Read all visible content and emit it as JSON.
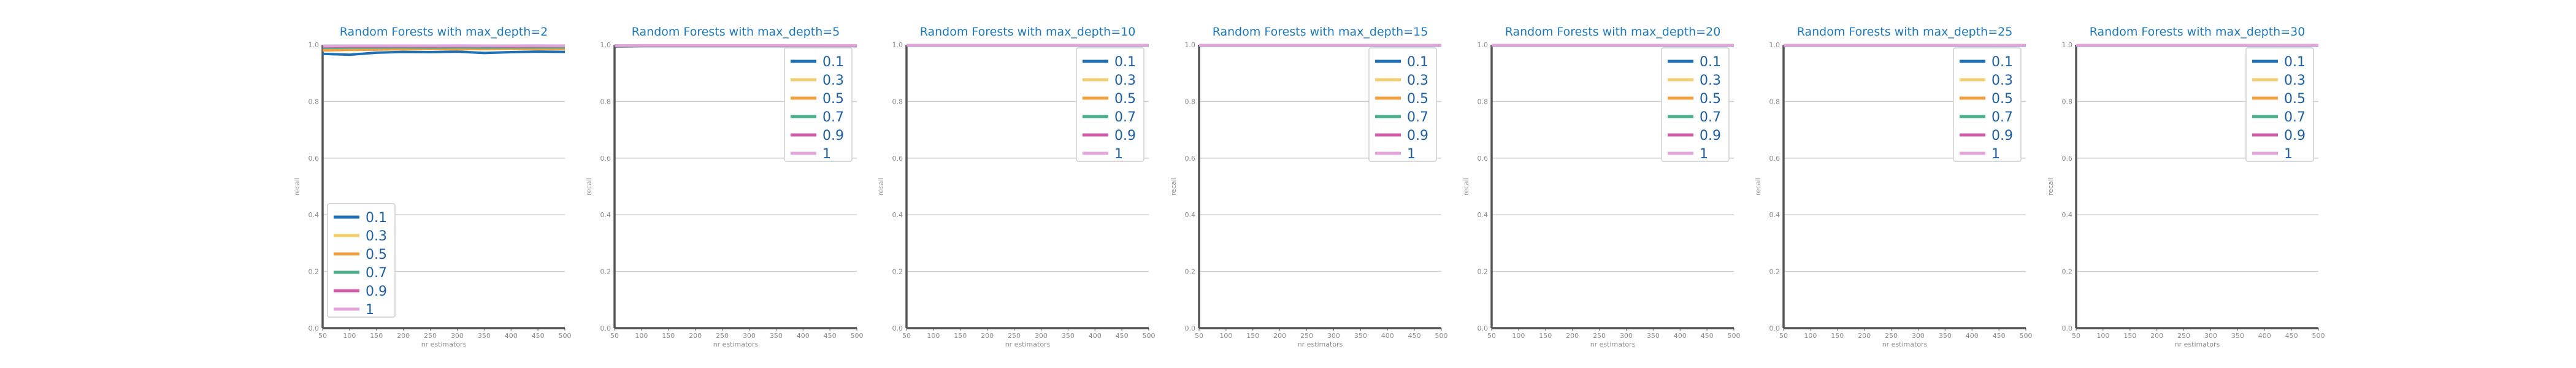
{
  "chart_data": [
    {
      "type": "line",
      "title": "Random Forests with max_depth=2",
      "xlabel": "nr estimators",
      "ylabel": "recall",
      "xlim": [
        50,
        500
      ],
      "ylim": [
        0,
        1
      ],
      "xticks": [
        "50",
        "100",
        "150",
        "200",
        "250",
        "300",
        "350",
        "400",
        "450",
        "500"
      ],
      "yticks": [
        "0.0",
        "0.2",
        "0.4",
        "0.6",
        "0.8",
        "1.0"
      ],
      "grid": true,
      "legend": "lower-left",
      "x": [
        50,
        100,
        150,
        200,
        250,
        300,
        350,
        400,
        450,
        500
      ],
      "series": [
        {
          "name": "0.1",
          "color": "#1f6fb5",
          "values": [
            0.968,
            0.965,
            0.972,
            0.975,
            0.974,
            0.976,
            0.971,
            0.974,
            0.976,
            0.975
          ]
        },
        {
          "name": "0.3",
          "color": "#f3cd70",
          "values": [
            0.982,
            0.985,
            0.984,
            0.986,
            0.985,
            0.986,
            0.986,
            0.985,
            0.986,
            0.986
          ]
        },
        {
          "name": "0.5",
          "color": "#f0a040",
          "values": [
            0.98,
            0.982,
            0.983,
            0.984,
            0.985,
            0.984,
            0.985,
            0.986,
            0.985,
            0.985
          ]
        },
        {
          "name": "0.7",
          "color": "#4caf8c",
          "values": [
            0.989,
            0.99,
            0.99,
            0.991,
            0.99,
            0.991,
            0.99,
            0.991,
            0.991,
            0.991
          ]
        },
        {
          "name": "0.9",
          "color": "#d05ca8",
          "values": [
            0.993,
            0.994,
            0.994,
            0.995,
            0.994,
            0.995,
            0.995,
            0.994,
            0.995,
            0.995
          ]
        },
        {
          "name": "1",
          "color": "#e2a6db",
          "values": [
            0.995,
            0.996,
            0.996,
            0.996,
            0.996,
            0.997,
            0.996,
            0.996,
            0.997,
            0.996
          ]
        }
      ]
    },
    {
      "type": "line",
      "title": "Random Forests with max_depth=5",
      "xlabel": "nr estimators",
      "ylabel": "recall",
      "xlim": [
        50,
        500
      ],
      "ylim": [
        0,
        1
      ],
      "xticks": [
        "50",
        "100",
        "150",
        "200",
        "250",
        "300",
        "350",
        "400",
        "450",
        "500"
      ],
      "yticks": [
        "0.0",
        "0.2",
        "0.4",
        "0.6",
        "0.8",
        "1.0"
      ],
      "grid": true,
      "legend": "upper-right",
      "x": [
        50,
        100,
        150,
        200,
        250,
        300,
        350,
        400,
        450,
        500
      ],
      "series": [
        {
          "name": "0.1",
          "color": "#1f6fb5",
          "values": [
            0.994,
            0.995,
            0.995,
            0.995,
            0.995,
            0.995,
            0.995,
            0.995,
            0.995,
            0.995
          ]
        },
        {
          "name": "0.3",
          "color": "#f3cd70",
          "values": [
            0.996,
            0.996,
            0.996,
            0.996,
            0.996,
            0.996,
            0.996,
            0.996,
            0.996,
            0.996
          ]
        },
        {
          "name": "0.5",
          "color": "#f0a040",
          "values": [
            0.996,
            0.997,
            0.997,
            0.997,
            0.997,
            0.997,
            0.997,
            0.997,
            0.997,
            0.997
          ]
        },
        {
          "name": "0.7",
          "color": "#4caf8c",
          "values": [
            0.997,
            0.997,
            0.997,
            0.997,
            0.997,
            0.997,
            0.997,
            0.997,
            0.997,
            0.997
          ]
        },
        {
          "name": "0.9",
          "color": "#d05ca8",
          "values": [
            0.997,
            0.997,
            0.997,
            0.997,
            0.997,
            0.997,
            0.997,
            0.997,
            0.997,
            0.997
          ]
        },
        {
          "name": "1",
          "color": "#e2a6db",
          "values": [
            0.997,
            0.998,
            0.998,
            0.998,
            0.998,
            0.998,
            0.998,
            0.998,
            0.998,
            0.998
          ]
        }
      ]
    },
    {
      "type": "line",
      "title": "Random Forests with max_depth=10",
      "xlabel": "nr estimators",
      "ylabel": "recall",
      "xlim": [
        50,
        500
      ],
      "ylim": [
        0,
        1
      ],
      "xticks": [
        "50",
        "100",
        "150",
        "200",
        "250",
        "300",
        "350",
        "400",
        "450",
        "500"
      ],
      "yticks": [
        "0.0",
        "0.2",
        "0.4",
        "0.6",
        "0.8",
        "1.0"
      ],
      "grid": true,
      "legend": "upper-right",
      "x": [
        50,
        100,
        150,
        200,
        250,
        300,
        350,
        400,
        450,
        500
      ],
      "series": [
        {
          "name": "0.1",
          "color": "#1f6fb5",
          "values": [
            0.997,
            0.997,
            0.997,
            0.997,
            0.997,
            0.997,
            0.997,
            0.997,
            0.997,
            0.997
          ]
        },
        {
          "name": "0.3",
          "color": "#f3cd70",
          "values": [
            0.998,
            0.998,
            0.998,
            0.998,
            0.998,
            0.998,
            0.998,
            0.998,
            0.998,
            0.998
          ]
        },
        {
          "name": "0.5",
          "color": "#f0a040",
          "values": [
            0.998,
            0.998,
            0.998,
            0.998,
            0.998,
            0.998,
            0.998,
            0.998,
            0.998,
            0.998
          ]
        },
        {
          "name": "0.7",
          "color": "#4caf8c",
          "values": [
            0.998,
            0.998,
            0.998,
            0.998,
            0.998,
            0.998,
            0.998,
            0.998,
            0.998,
            0.998
          ]
        },
        {
          "name": "0.9",
          "color": "#d05ca8",
          "values": [
            0.998,
            0.998,
            0.998,
            0.998,
            0.998,
            0.998,
            0.998,
            0.998,
            0.998,
            0.998
          ]
        },
        {
          "name": "1",
          "color": "#e2a6db",
          "values": [
            0.998,
            0.998,
            0.998,
            0.998,
            0.998,
            0.998,
            0.998,
            0.998,
            0.998,
            0.998
          ]
        }
      ]
    },
    {
      "type": "line",
      "title": "Random Forests with max_depth=15",
      "xlabel": "nr estimators",
      "ylabel": "recall",
      "xlim": [
        50,
        500
      ],
      "ylim": [
        0,
        1
      ],
      "xticks": [
        "50",
        "100",
        "150",
        "200",
        "250",
        "300",
        "350",
        "400",
        "450",
        "500"
      ],
      "yticks": [
        "0.0",
        "0.2",
        "0.4",
        "0.6",
        "0.8",
        "1.0"
      ],
      "grid": true,
      "legend": "upper-right",
      "x": [
        50,
        100,
        150,
        200,
        250,
        300,
        350,
        400,
        450,
        500
      ],
      "series": [
        {
          "name": "0.1",
          "color": "#1f6fb5",
          "values": [
            0.997,
            0.997,
            0.997,
            0.997,
            0.997,
            0.997,
            0.997,
            0.997,
            0.997,
            0.997
          ]
        },
        {
          "name": "0.3",
          "color": "#f3cd70",
          "values": [
            0.998,
            0.998,
            0.998,
            0.998,
            0.998,
            0.998,
            0.998,
            0.998,
            0.998,
            0.998
          ]
        },
        {
          "name": "0.5",
          "color": "#f0a040",
          "values": [
            0.998,
            0.998,
            0.998,
            0.998,
            0.998,
            0.998,
            0.998,
            0.998,
            0.998,
            0.998
          ]
        },
        {
          "name": "0.7",
          "color": "#4caf8c",
          "values": [
            0.998,
            0.998,
            0.998,
            0.998,
            0.998,
            0.998,
            0.998,
            0.998,
            0.998,
            0.998
          ]
        },
        {
          "name": "0.9",
          "color": "#d05ca8",
          "values": [
            0.998,
            0.998,
            0.998,
            0.998,
            0.998,
            0.998,
            0.998,
            0.998,
            0.998,
            0.998
          ]
        },
        {
          "name": "1",
          "color": "#e2a6db",
          "values": [
            0.998,
            0.998,
            0.998,
            0.998,
            0.998,
            0.998,
            0.998,
            0.998,
            0.998,
            0.998
          ]
        }
      ]
    },
    {
      "type": "line",
      "title": "Random Forests with max_depth=20",
      "xlabel": "nr estimators",
      "ylabel": "recall",
      "xlim": [
        50,
        500
      ],
      "ylim": [
        0,
        1
      ],
      "xticks": [
        "50",
        "100",
        "150",
        "200",
        "250",
        "300",
        "350",
        "400",
        "450",
        "500"
      ],
      "yticks": [
        "0.0",
        "0.2",
        "0.4",
        "0.6",
        "0.8",
        "1.0"
      ],
      "grid": true,
      "legend": "upper-right",
      "x": [
        50,
        100,
        150,
        200,
        250,
        300,
        350,
        400,
        450,
        500
      ],
      "series": [
        {
          "name": "0.1",
          "color": "#1f6fb5",
          "values": [
            0.997,
            0.997,
            0.997,
            0.997,
            0.997,
            0.997,
            0.997,
            0.997,
            0.997,
            0.997
          ]
        },
        {
          "name": "0.3",
          "color": "#f3cd70",
          "values": [
            0.998,
            0.998,
            0.998,
            0.998,
            0.998,
            0.998,
            0.998,
            0.998,
            0.998,
            0.998
          ]
        },
        {
          "name": "0.5",
          "color": "#f0a040",
          "values": [
            0.998,
            0.998,
            0.998,
            0.998,
            0.998,
            0.998,
            0.998,
            0.998,
            0.998,
            0.998
          ]
        },
        {
          "name": "0.7",
          "color": "#4caf8c",
          "values": [
            0.998,
            0.998,
            0.998,
            0.998,
            0.998,
            0.998,
            0.998,
            0.998,
            0.998,
            0.998
          ]
        },
        {
          "name": "0.9",
          "color": "#d05ca8",
          "values": [
            0.998,
            0.998,
            0.998,
            0.998,
            0.998,
            0.998,
            0.998,
            0.998,
            0.998,
            0.998
          ]
        },
        {
          "name": "1",
          "color": "#e2a6db",
          "values": [
            0.998,
            0.998,
            0.998,
            0.998,
            0.998,
            0.998,
            0.998,
            0.998,
            0.998,
            0.998
          ]
        }
      ]
    },
    {
      "type": "line",
      "title": "Random Forests with max_depth=25",
      "xlabel": "nr estimators",
      "ylabel": "recall",
      "xlim": [
        50,
        500
      ],
      "ylim": [
        0,
        1
      ],
      "xticks": [
        "50",
        "100",
        "150",
        "200",
        "250",
        "300",
        "350",
        "400",
        "450",
        "500"
      ],
      "yticks": [
        "0.0",
        "0.2",
        "0.4",
        "0.6",
        "0.8",
        "1.0"
      ],
      "grid": true,
      "legend": "upper-right",
      "x": [
        50,
        100,
        150,
        200,
        250,
        300,
        350,
        400,
        450,
        500
      ],
      "series": [
        {
          "name": "0.1",
          "color": "#1f6fb5",
          "values": [
            0.997,
            0.997,
            0.997,
            0.997,
            0.997,
            0.997,
            0.997,
            0.997,
            0.997,
            0.997
          ]
        },
        {
          "name": "0.3",
          "color": "#f3cd70",
          "values": [
            0.998,
            0.998,
            0.998,
            0.998,
            0.998,
            0.998,
            0.998,
            0.998,
            0.998,
            0.998
          ]
        },
        {
          "name": "0.5",
          "color": "#f0a040",
          "values": [
            0.998,
            0.998,
            0.998,
            0.998,
            0.998,
            0.998,
            0.998,
            0.998,
            0.998,
            0.998
          ]
        },
        {
          "name": "0.7",
          "color": "#4caf8c",
          "values": [
            0.998,
            0.998,
            0.998,
            0.998,
            0.998,
            0.998,
            0.998,
            0.998,
            0.998,
            0.998
          ]
        },
        {
          "name": "0.9",
          "color": "#d05ca8",
          "values": [
            0.998,
            0.998,
            0.998,
            0.998,
            0.998,
            0.998,
            0.998,
            0.998,
            0.998,
            0.998
          ]
        },
        {
          "name": "1",
          "color": "#e2a6db",
          "values": [
            0.998,
            0.998,
            0.998,
            0.998,
            0.998,
            0.998,
            0.998,
            0.998,
            0.998,
            0.998
          ]
        }
      ]
    },
    {
      "type": "line",
      "title": "Random Forests with max_depth=30",
      "xlabel": "nr estimators",
      "ylabel": "recall",
      "xlim": [
        50,
        500
      ],
      "ylim": [
        0,
        1
      ],
      "xticks": [
        "50",
        "100",
        "150",
        "200",
        "250",
        "300",
        "350",
        "400",
        "450",
        "500"
      ],
      "yticks": [
        "0.0",
        "0.2",
        "0.4",
        "0.6",
        "0.8",
        "1.0"
      ],
      "grid": true,
      "legend": "upper-right",
      "x": [
        50,
        100,
        150,
        200,
        250,
        300,
        350,
        400,
        450,
        500
      ],
      "series": [
        {
          "name": "0.1",
          "color": "#1f6fb5",
          "values": [
            0.997,
            0.997,
            0.997,
            0.997,
            0.997,
            0.997,
            0.997,
            0.997,
            0.997,
            0.997
          ]
        },
        {
          "name": "0.3",
          "color": "#f3cd70",
          "values": [
            0.998,
            0.998,
            0.998,
            0.998,
            0.998,
            0.998,
            0.998,
            0.998,
            0.998,
            0.998
          ]
        },
        {
          "name": "0.5",
          "color": "#f0a040",
          "values": [
            0.998,
            0.998,
            0.998,
            0.998,
            0.998,
            0.998,
            0.998,
            0.998,
            0.998,
            0.998
          ]
        },
        {
          "name": "0.7",
          "color": "#4caf8c",
          "values": [
            0.998,
            0.998,
            0.998,
            0.998,
            0.998,
            0.998,
            0.998,
            0.998,
            0.998,
            0.998
          ]
        },
        {
          "name": "0.9",
          "color": "#d05ca8",
          "values": [
            0.998,
            0.998,
            0.998,
            0.998,
            0.998,
            0.998,
            0.998,
            0.998,
            0.998,
            0.998
          ]
        },
        {
          "name": "1",
          "color": "#e2a6db",
          "values": [
            0.998,
            0.998,
            0.998,
            0.998,
            0.998,
            0.998,
            0.998,
            0.998,
            0.998,
            0.998
          ]
        }
      ]
    }
  ]
}
